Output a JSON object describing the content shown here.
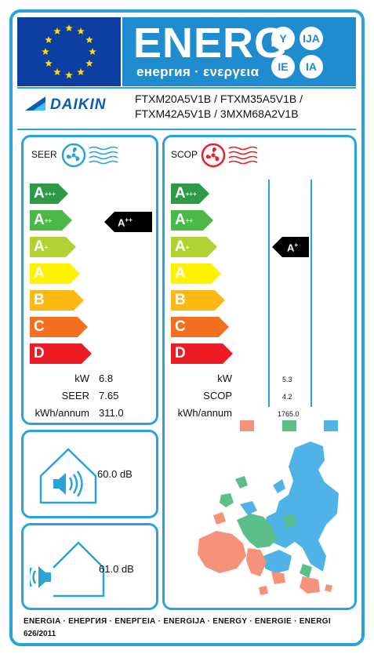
{
  "header": {
    "energy_word": "ENERG",
    "energy_sub": "енергия · ενεργεια",
    "lang_codes": [
      "Y",
      "IJA",
      "IE",
      "IA"
    ]
  },
  "supplier": {
    "brand": "DAIKIN",
    "models_line1": "FTXM20A5V1B / FTXM35A5V1B /",
    "models_line2": "FTXM42A5V1B / 3MXM68A2V1B"
  },
  "cooling": {
    "label": "SEER",
    "scale": [
      {
        "base": "A",
        "plus": "+++",
        "color": "#2e9a47"
      },
      {
        "base": "A",
        "plus": "++",
        "color": "#4cb848"
      },
      {
        "base": "A",
        "plus": "+",
        "color": "#b2d234"
      },
      {
        "base": "A",
        "plus": "",
        "color": "#fff200"
      },
      {
        "base": "B",
        "plus": "",
        "color": "#fdb913"
      },
      {
        "base": "C",
        "plus": "",
        "color": "#f37021"
      },
      {
        "base": "D",
        "plus": "",
        "color": "#ed1c24"
      }
    ],
    "class_base": "A",
    "class_plus": "++",
    "rows": [
      {
        "label": "kW",
        "value": "6.8"
      },
      {
        "label": "SEER",
        "value": "7.65"
      },
      {
        "label": "kWh/annum",
        "value": "311.0"
      }
    ]
  },
  "heating": {
    "label": "SCOP",
    "class_base": "A",
    "class_plus": "+",
    "rows": [
      {
        "label": "kW",
        "value": "5.3"
      },
      {
        "label": "SCOP",
        "value": "4.2"
      },
      {
        "label": "kWh/annum",
        "value": "1765.0"
      }
    ],
    "zone_colors": [
      "#f4937a",
      "#5bbf8c",
      "#4fb3e8"
    ]
  },
  "noise": {
    "indoor_db": "60.0",
    "outdoor_db": "61.0",
    "unit": "dB"
  },
  "footer": {
    "line1": "ENERGIA · ЕНЕРГИЯ · ΕΝΕΡΓΕΙΑ · ENERGIJA · ENERGY · ENERGIE · ENERGI",
    "line2": "626/2011"
  },
  "colors": {
    "frame": "#2aa3d8",
    "eu_blue": "#0d3ea1",
    "energy_band": "#1e8ccf",
    "star": "#ffdd00"
  }
}
